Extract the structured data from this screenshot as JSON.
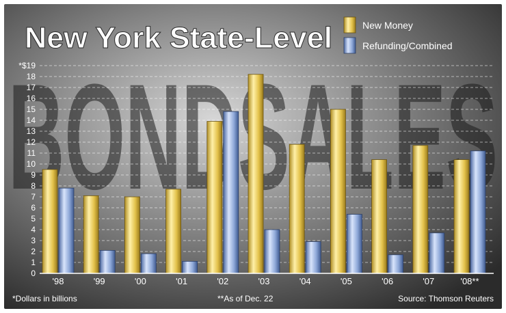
{
  "chart_data": {
    "type": "bar",
    "title": "New York State-Level",
    "background_word": "BONDSALES",
    "categories": [
      "'98",
      "'99",
      "'00",
      "'01",
      "'02",
      "'03",
      "'04",
      "'05",
      "'06",
      "'07",
      "'08**"
    ],
    "series": [
      {
        "name": "New Money",
        "color": "#e3c24b",
        "values": [
          9.5,
          7.1,
          7.0,
          7.7,
          13.9,
          18.2,
          11.8,
          15.0,
          10.4,
          11.7,
          10.4
        ]
      },
      {
        "name": "Refunding/Combined",
        "color": "#8ea8d8",
        "values": [
          7.8,
          2.1,
          1.8,
          1.1,
          14.8,
          4.0,
          2.9,
          5.4,
          1.7,
          3.7,
          11.2
        ]
      }
    ],
    "y_ticks": [
      "0",
      "1",
      "2",
      "3",
      "4",
      "5",
      "6",
      "7",
      "8",
      "9",
      "10",
      "11",
      "12",
      "13",
      "14",
      "15",
      "16",
      "17",
      "18",
      "*$19"
    ],
    "ylim": [
      0,
      19
    ],
    "grid": true,
    "legend_position": "top-right",
    "footnotes": {
      "units": "*Dollars in billions",
      "as_of": "**As of Dec. 22",
      "source": "Source: Thomson Reuters"
    }
  }
}
